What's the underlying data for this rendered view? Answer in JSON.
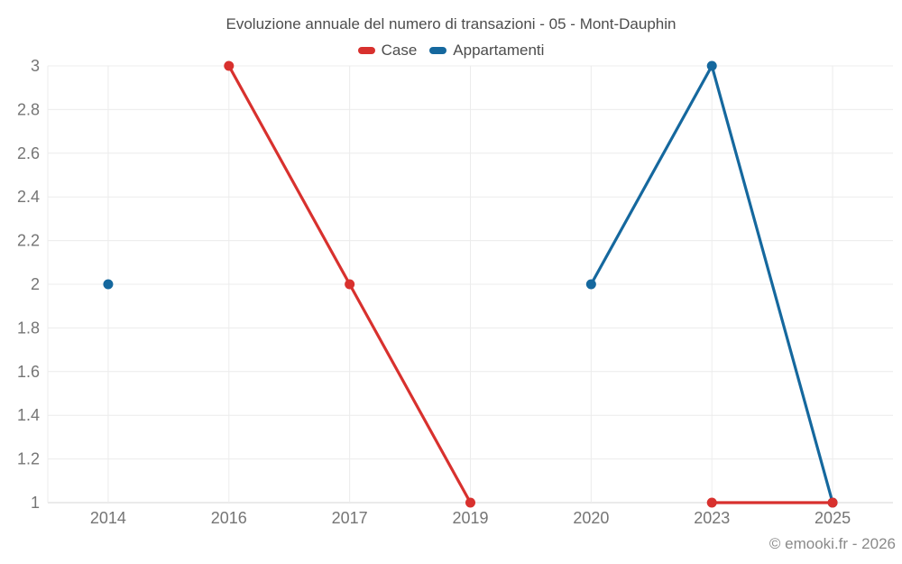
{
  "chart_data": {
    "type": "line",
    "title": "Evoluzione annuale del numero di transazioni - 05 - Mont-Dauphin",
    "categories": [
      "2014",
      "2016",
      "2017",
      "2019",
      "2020",
      "2023",
      "2025"
    ],
    "series": [
      {
        "name": "Case",
        "color": "#d8312e",
        "values": [
          null,
          3,
          2,
          1,
          null,
          1,
          1
        ]
      },
      {
        "name": "Appartamenti",
        "color": "#15689e",
        "values": [
          2,
          null,
          null,
          null,
          2,
          3,
          1
        ]
      }
    ],
    "xlabel": "",
    "ylabel": "",
    "ylim": [
      1,
      3
    ],
    "y_tick_step": 0.2,
    "grid": true,
    "legend_position": "top"
  },
  "footer": {
    "copyright": "© emooki.fr - 2026"
  },
  "style": {
    "grid_color": "#ececec",
    "axis_color": "#d6d6d6",
    "tick_label_color": "#757575",
    "title_color": "#4d4d4d",
    "footer_color": "#8a8a8a",
    "marker_radius": 5.5,
    "line_width": 3.2
  }
}
